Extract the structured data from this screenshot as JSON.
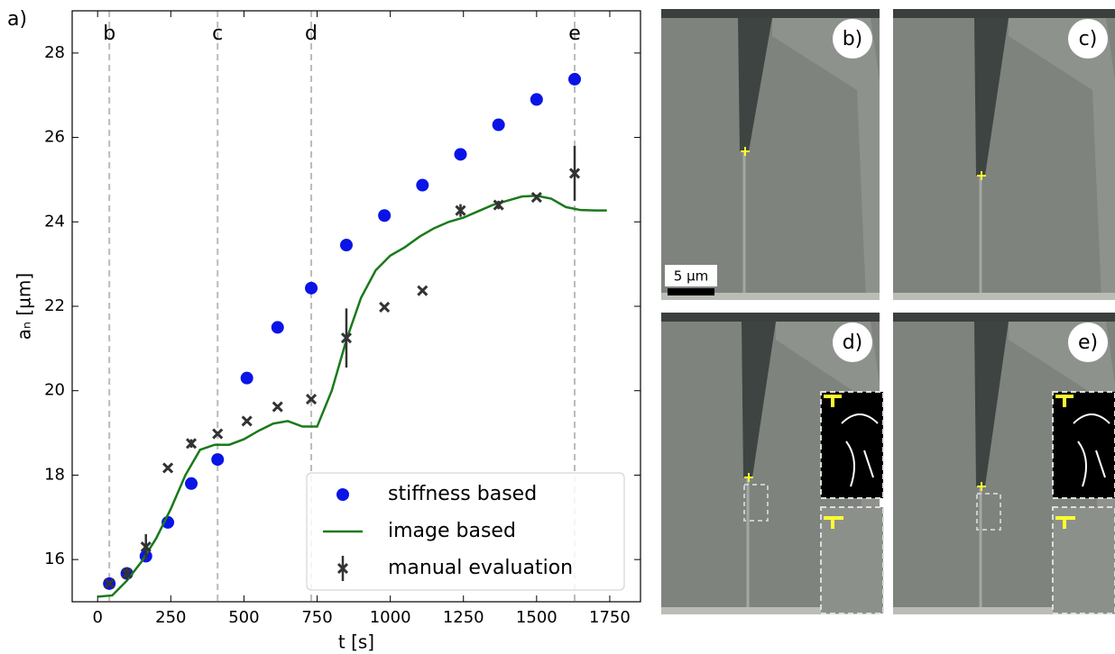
{
  "chart_data": {
    "type": "scatter",
    "panel_label": "a)",
    "xlabel": "t [s]",
    "ylabel": "aₙ [µm]",
    "xlim": [
      -87,
      1855
    ],
    "ylim": [
      15,
      29
    ],
    "xticks": [
      0,
      250,
      500,
      750,
      1000,
      1250,
      1500,
      1750
    ],
    "yticks": [
      16,
      18,
      20,
      22,
      24,
      26,
      28
    ],
    "legend": "lower right",
    "vlines": {
      "x": [
        40,
        410,
        730,
        1630
      ],
      "labels": [
        "b",
        "c",
        "d",
        "e"
      ],
      "color": "#bbbbbb"
    },
    "series": [
      {
        "name": "stiffness based",
        "type": "scatter",
        "color": "#0a14e6",
        "x": [
          40,
          100,
          165,
          240,
          320,
          410,
          510,
          615,
          730,
          850,
          980,
          1110,
          1240,
          1370,
          1500,
          1630
        ],
        "values": [
          15.43,
          15.67,
          16.08,
          16.88,
          17.8,
          18.37,
          20.3,
          21.5,
          22.43,
          23.45,
          24.15,
          24.87,
          25.6,
          26.3,
          26.9,
          27.38
        ]
      },
      {
        "name": "image based",
        "type": "line",
        "color": "#1a7a1a",
        "x": [
          0,
          50,
          100,
          150,
          200,
          250,
          300,
          350,
          400,
          450,
          500,
          550,
          600,
          650,
          700,
          750,
          800,
          850,
          900,
          950,
          1000,
          1050,
          1100,
          1150,
          1200,
          1250,
          1300,
          1350,
          1400,
          1450,
          1500,
          1550,
          1600,
          1650,
          1700,
          1740
        ],
        "values": [
          15.12,
          15.15,
          15.5,
          15.95,
          16.5,
          17.2,
          18.0,
          18.6,
          18.72,
          18.72,
          18.85,
          19.05,
          19.22,
          19.28,
          19.15,
          19.15,
          20.0,
          21.2,
          22.2,
          22.85,
          23.2,
          23.4,
          23.65,
          23.85,
          24.0,
          24.1,
          24.25,
          24.4,
          24.5,
          24.6,
          24.62,
          24.55,
          24.35,
          24.28,
          24.27,
          24.27
        ]
      },
      {
        "name": "manual evaluation",
        "type": "errorbar",
        "color": "#333333",
        "x": [
          40,
          100,
          165,
          240,
          320,
          410,
          510,
          615,
          730,
          850,
          980,
          1110,
          1240,
          1370,
          1500,
          1630
        ],
        "values": [
          15.43,
          15.67,
          16.3,
          18.17,
          18.75,
          18.98,
          19.28,
          19.62,
          19.8,
          21.25,
          21.98,
          22.37,
          24.27,
          24.4,
          24.58,
          25.15
        ],
        "errors": [
          0.05,
          0.15,
          0.3,
          0.05,
          0.1,
          0.05,
          0.05,
          0.05,
          0.05,
          0.7,
          0.05,
          0.05,
          0.15,
          0.1,
          0.05,
          0.65
        ]
      }
    ]
  },
  "panels": {
    "labels": [
      "b)",
      "c)",
      "d)",
      "e)"
    ],
    "scalebar": "5 µm"
  }
}
